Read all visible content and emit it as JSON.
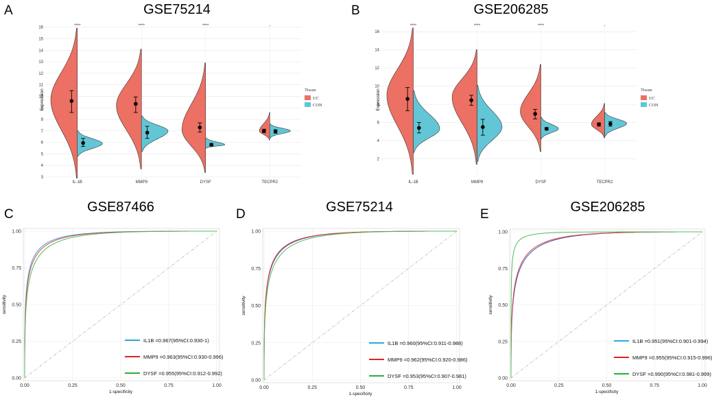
{
  "chart_data": [
    {
      "type": "violin",
      "letter": "A",
      "title": "GSE75214",
      "ylabel": "Expression",
      "ylim": [
        3,
        16.4
      ],
      "yticks": [
        3,
        4,
        5,
        6,
        7,
        8,
        9,
        10,
        11,
        12,
        13,
        14,
        15,
        16
      ],
      "categories": [
        "IL-1B",
        "MMP9",
        "DYSF",
        "TECPR2"
      ],
      "significance": [
        "****",
        "****",
        "****",
        "-"
      ],
      "legend": {
        "title": "Tissue",
        "items": [
          {
            "label": "UC",
            "color": "#EC7063"
          },
          {
            "label": "CON",
            "color": "#62C6D6"
          }
        ]
      },
      "series": [
        {
          "name": "UC",
          "color": "#EC7063",
          "min": [
            2.9,
            3.7,
            3.4,
            6.2
          ],
          "max": [
            15.9,
            14.1,
            12.9,
            8.6
          ],
          "mode": [
            9.7,
            9.2,
            7.1,
            7.0
          ],
          "width": [
            0.9,
            0.85,
            0.8,
            0.35
          ],
          "mean": [
            9.6,
            9.35,
            7.3,
            7.0
          ],
          "err_low": [
            8.6,
            8.6,
            6.9,
            6.85
          ],
          "err_high": [
            10.5,
            9.95,
            7.7,
            7.15
          ]
        },
        {
          "name": "CON",
          "color": "#62C6D6",
          "min": [
            4.8,
            5.2,
            5.5,
            6.4
          ],
          "max": [
            7.0,
            8.3,
            6.4,
            7.6
          ],
          "mode": [
            5.9,
            7.0,
            5.8,
            7.0
          ],
          "width": [
            0.85,
            0.9,
            0.65,
            0.7
          ],
          "mean": [
            5.95,
            6.85,
            5.8,
            6.95
          ],
          "err_low": [
            5.65,
            6.35,
            5.7,
            6.8
          ],
          "err_high": [
            6.35,
            7.4,
            5.9,
            7.1
          ]
        }
      ]
    },
    {
      "type": "violin",
      "letter": "B",
      "title": "GSE206285",
      "ylabel": "Expression",
      "ylim": [
        0,
        17
      ],
      "yticks": [
        2,
        4,
        6,
        8,
        10,
        12,
        14,
        16
      ],
      "categories": [
        "IL-1B",
        "MMP9",
        "DYSF",
        "TECPR2"
      ],
      "significance": [
        "****",
        "****",
        "****",
        "-"
      ],
      "legend": {
        "title": "Tissue",
        "items": [
          {
            "label": "UC",
            "color": "#EC7063"
          },
          {
            "label": "CON",
            "color": "#62C6D6"
          }
        ]
      },
      "series": [
        {
          "name": "UC",
          "color": "#EC7063",
          "min": [
            0.3,
            1.4,
            2.8,
            4.3
          ],
          "max": [
            16.4,
            14.0,
            12.4,
            8.1
          ],
          "mode": [
            9.0,
            8.8,
            7.2,
            5.8
          ],
          "width": [
            0.9,
            0.85,
            0.7,
            0.45
          ],
          "mean": [
            8.6,
            8.45,
            6.95,
            5.8
          ],
          "err_low": [
            7.3,
            7.9,
            6.4,
            5.6
          ],
          "err_high": [
            9.85,
            9.0,
            7.45,
            5.95
          ]
        },
        {
          "name": "CON",
          "color": "#62C6D6",
          "min": [
            2.7,
            1.7,
            4.2,
            4.5
          ],
          "max": [
            9.5,
            10.1,
            6.6,
            7.1
          ],
          "mode": [
            5.3,
            5.5,
            5.3,
            5.9
          ],
          "width": [
            0.9,
            0.85,
            0.6,
            0.75
          ],
          "mean": [
            5.4,
            5.5,
            5.3,
            5.85
          ],
          "err_low": [
            4.85,
            4.6,
            5.2,
            5.6
          ],
          "err_high": [
            6.0,
            6.35,
            5.45,
            6.1
          ]
        }
      ]
    },
    {
      "type": "roc",
      "letter": "C",
      "title": "GSE87466",
      "xlabel": "1-specificity",
      "ylabel": "sensitivity",
      "xticks": [
        "0.00",
        "0.25",
        "0.50",
        "0.75",
        "1.00"
      ],
      "yticks": [
        "0.00",
        "0.25",
        "0.50",
        "0.75",
        "1.00"
      ],
      "series": [
        {
          "name": "IL1B",
          "label": "IL1B =0.967(95%CI:0.930-1)",
          "auc": 0.967,
          "color": "#29A8E0",
          "legend_color": "#29A8E0"
        },
        {
          "name": "MMP9",
          "label": "MMP9 =0.963(95%CI:0.930-0.996)",
          "auc": 0.963,
          "color": "#E8413C",
          "legend_color": "#E02020"
        },
        {
          "name": "DYSF",
          "label": "DYSF =0.955(95%CI:0.912-0.992)",
          "auc": 0.955,
          "color": "#55B85A",
          "legend_color": "#2AAE3A"
        }
      ]
    },
    {
      "type": "roc",
      "letter": "D",
      "title": "GSE75214",
      "xlabel": "1-specificity",
      "ylabel": "sensitivity",
      "xticks": [
        "0.00",
        "0.25",
        "0.50",
        "0.75",
        "1.00"
      ],
      "yticks": [
        "0.00",
        "0.25",
        "0.50",
        "0.75",
        "1.00"
      ],
      "series": [
        {
          "name": "IL1B",
          "label": "IL1B =0.960(95%CI:0.911-0.988)",
          "auc": 0.96,
          "color": "#2C53B5",
          "legend_color": "#29A8E0"
        },
        {
          "name": "MMP9",
          "label": "MMP9 =0.962(95%CI:0.920-0.986)",
          "auc": 0.962,
          "color": "#E8413C",
          "legend_color": "#E02020"
        },
        {
          "name": "DYSF",
          "label": "DYSF =0.953(95%CI:0.907-0.981)",
          "auc": 0.953,
          "color": "#55B85A",
          "legend_color": "#2AAE3A"
        }
      ]
    },
    {
      "type": "roc",
      "letter": "E",
      "title": "GSE206285",
      "xlabel": "1-specificity",
      "ylabel": "sensitivity",
      "xticks": [
        "0.00",
        "0.25",
        "0.50",
        "0.75",
        "1.00"
      ],
      "yticks": [
        "0.00",
        "0.25",
        "0.50",
        "0.75",
        "1.00"
      ],
      "series": [
        {
          "name": "IL1B",
          "label": "IL1B =0.951(95%CI:0.901-0.994)",
          "auc": 0.951,
          "color": "#2C53B5",
          "legend_color": "#29A8E0"
        },
        {
          "name": "MMP9",
          "label": "MMP9 =0.955(95%CI:0.915-0.996)",
          "auc": 0.955,
          "color": "#E8413C",
          "legend_color": "#E02020"
        },
        {
          "name": "DYSF",
          "label": "DYSF =0.990(95%CI:0.981-0.999)",
          "auc": 0.99,
          "color": "#55B85A",
          "legend_color": "#2AAE3A"
        }
      ]
    }
  ]
}
